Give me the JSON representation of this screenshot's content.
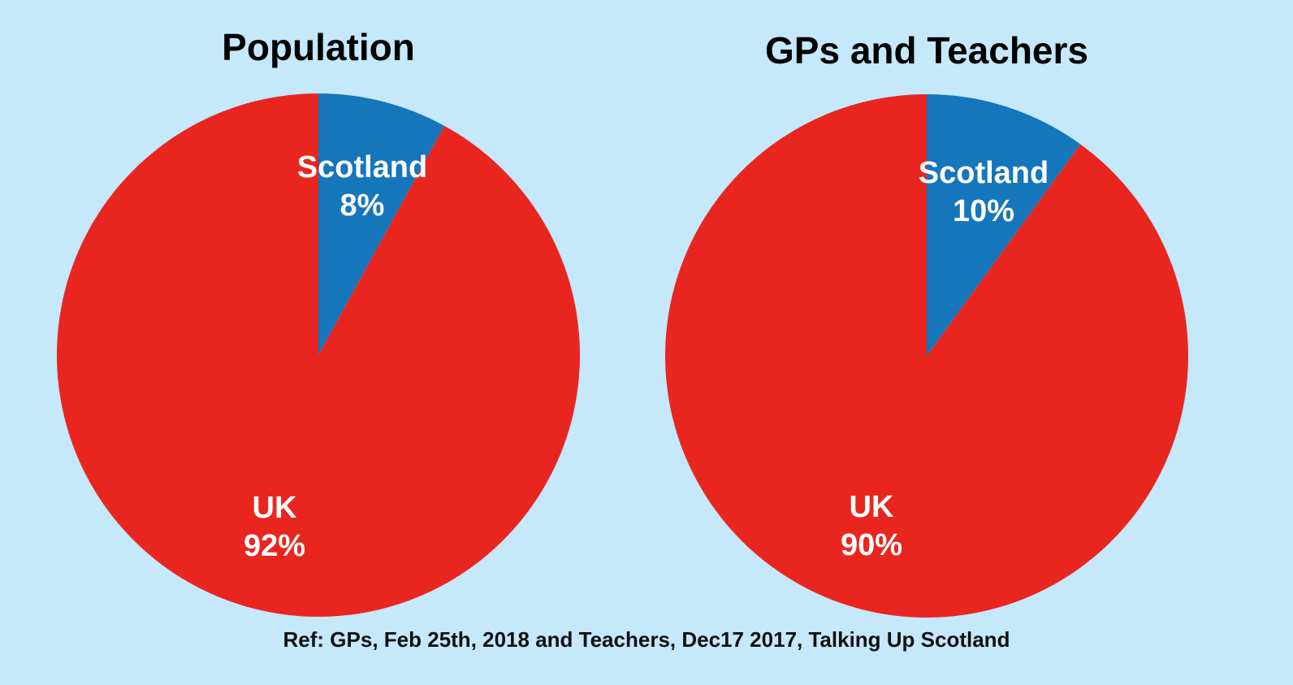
{
  "chart_data": [
    {
      "type": "pie",
      "title": "Population",
      "slices": [
        {
          "label": "Scotland",
          "value": 8,
          "value_label": "8%",
          "color": "#1576bb"
        },
        {
          "label": "UK",
          "value": 92,
          "value_label": "92%",
          "color": "#e8261f"
        }
      ]
    },
    {
      "type": "pie",
      "title": "GPs and Teachers",
      "slices": [
        {
          "label": "Scotland",
          "value": 10,
          "value_label": "10%",
          "color": "#1576bb"
        },
        {
          "label": "UK",
          "value": 90,
          "value_label": "90%",
          "color": "#e8261f"
        }
      ]
    }
  ],
  "footnote": "Ref: GPs, Feb 25th, 2018 and Teachers, Dec17 2017, Talking Up Scotland",
  "colors": {
    "background": "#c5e8fb",
    "scotland": "#1576bb",
    "uk": "#e8261f"
  }
}
